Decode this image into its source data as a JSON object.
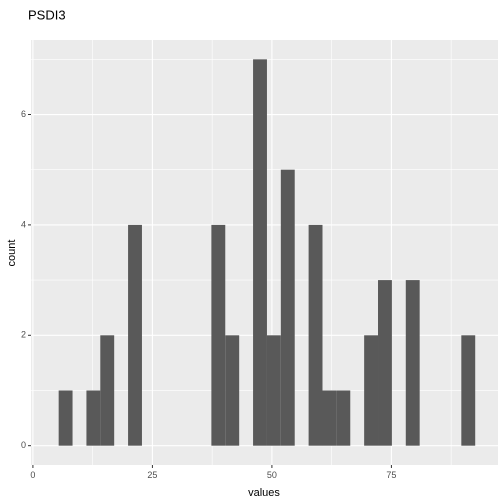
{
  "chart_data": {
    "type": "bar",
    "title": "PSDI3",
    "xlabel": "values",
    "ylabel": "count",
    "bin_width": 2.905,
    "bins": [
      {
        "x": 6.84,
        "count": 1
      },
      {
        "x": 12.65,
        "count": 1
      },
      {
        "x": 15.55,
        "count": 2
      },
      {
        "x": 21.36,
        "count": 4
      },
      {
        "x": 38.79,
        "count": 4
      },
      {
        "x": 41.7,
        "count": 2
      },
      {
        "x": 47.51,
        "count": 7
      },
      {
        "x": 50.41,
        "count": 2
      },
      {
        "x": 53.32,
        "count": 5
      },
      {
        "x": 59.13,
        "count": 4
      },
      {
        "x": 62.03,
        "count": 1
      },
      {
        "x": 64.94,
        "count": 1
      },
      {
        "x": 70.75,
        "count": 2
      },
      {
        "x": 73.65,
        "count": 3
      },
      {
        "x": 79.46,
        "count": 3
      },
      {
        "x": 91.08,
        "count": 2
      }
    ],
    "x_ticks": [
      {
        "value": 0,
        "label": "0"
      },
      {
        "value": 25,
        "label": "25"
      },
      {
        "value": 50,
        "label": "50"
      },
      {
        "value": 75,
        "label": "75"
      }
    ],
    "y_ticks": [
      {
        "value": 0,
        "label": "0"
      },
      {
        "value": 2,
        "label": "2"
      },
      {
        "value": 4,
        "label": "4"
      },
      {
        "value": 6,
        "label": "6"
      }
    ],
    "xlim": [
      -0.4,
      97.3
    ],
    "ylim": [
      -0.35,
      7.35
    ],
    "grid": true,
    "colors": {
      "bar": "#595959",
      "panel": "#ebebeb",
      "grid": "#ffffff"
    }
  }
}
